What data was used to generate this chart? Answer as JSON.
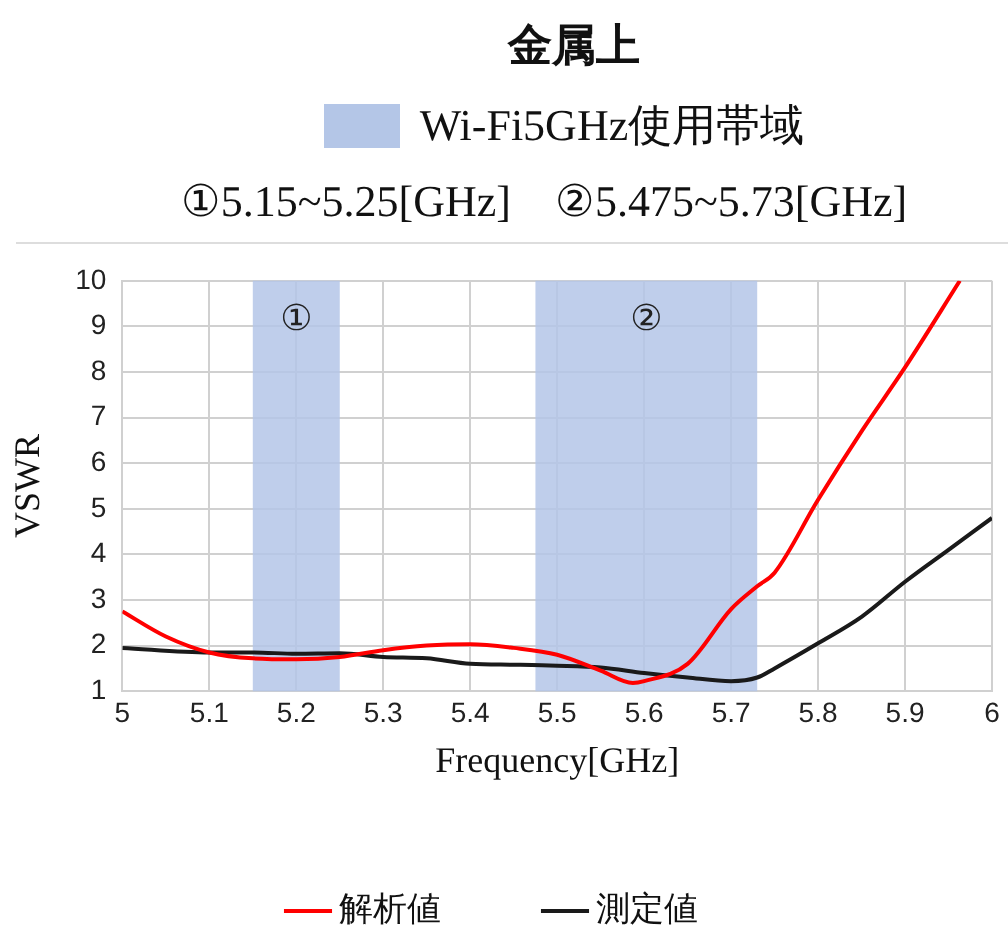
{
  "chart_data": {
    "type": "line",
    "title": "金属上",
    "subtitle": "Wi-Fi5GHz使用帯域",
    "annotations": [
      "①5.15~5.25[GHz]　②5.475~5.73[GHz]"
    ],
    "xlabel": "Frequency[GHz]",
    "ylabel": "VSWR",
    "xlim": [
      5,
      6
    ],
    "xticks": [
      5,
      5.1,
      5.2,
      5.3,
      5.4,
      5.5,
      5.6,
      5.7,
      5.8,
      5.9,
      6
    ],
    "ylim": [
      1,
      10
    ],
    "yticks": [
      1,
      2,
      3,
      4,
      5,
      6,
      7,
      8,
      9,
      10
    ],
    "grid": true,
    "legend": "bottom",
    "marker": "none",
    "line_style": "solid",
    "bands": [
      {
        "axis": "x",
        "from": 5.15,
        "to": 5.25,
        "label": "①",
        "color": "#b4c6e7"
      },
      {
        "axis": "x",
        "from": 5.475,
        "to": 5.73,
        "label": "②",
        "color": "#b4c6e7"
      }
    ],
    "series": [
      {
        "name": "解析値",
        "color": "#ff0000",
        "x": [
          5,
          5.05,
          5.1,
          5.15,
          5.2,
          5.25,
          5.3,
          5.35,
          5.4,
          5.45,
          5.5,
          5.55,
          5.587,
          5.6,
          5.65,
          5.7,
          5.73,
          5.75,
          5.8,
          5.85,
          5.9,
          5.963
        ],
        "values": [
          2.75,
          2.2,
          1.85,
          1.72,
          1.7,
          1.75,
          1.9,
          2.0,
          2.03,
          1.95,
          1.8,
          1.45,
          1.18,
          1.22,
          1.6,
          2.8,
          3.3,
          3.6,
          5.2,
          6.7,
          8.1,
          10
        ]
      },
      {
        "name": "測定値",
        "color": "#1a1a1a",
        "x": [
          5,
          5.1,
          5.15,
          5.2,
          5.25,
          5.3,
          5.35,
          5.4,
          5.45,
          5.5,
          5.55,
          5.6,
          5.65,
          5.7,
          5.73,
          5.75,
          5.8,
          5.85,
          5.9,
          5.95,
          6
        ],
        "values": [
          1.95,
          1.85,
          1.85,
          1.82,
          1.83,
          1.75,
          1.72,
          1.6,
          1.58,
          1.56,
          1.52,
          1.4,
          1.3,
          1.22,
          1.3,
          1.5,
          2.05,
          2.63,
          3.4,
          4.1,
          4.8
        ]
      }
    ]
  }
}
